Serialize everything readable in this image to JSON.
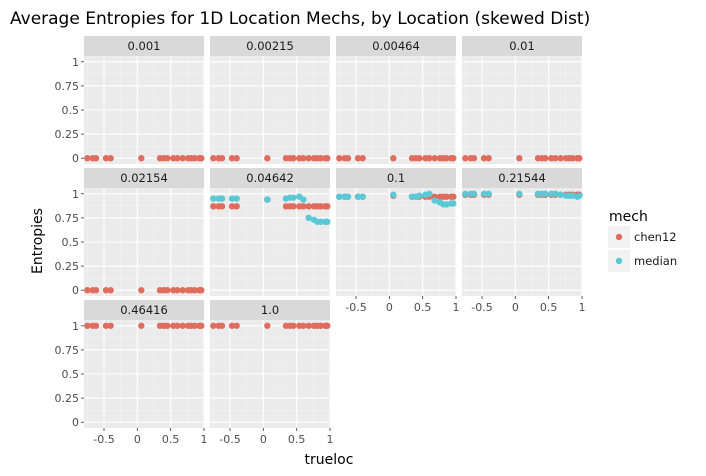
{
  "chart_data": {
    "type": "scatter",
    "title": "Average Entropies for 1D Location Mechs, by Location (skewed Dist)",
    "xlabel": "trueloc",
    "ylabel": "Entropies",
    "x_ticks": [
      "-0.5",
      "0",
      "0.5",
      "1"
    ],
    "y_ticks": [
      "0",
      "0.25",
      "0.5",
      "0.75",
      "1"
    ],
    "xlim": [
      -0.8,
      1.0
    ],
    "ylim": [
      -0.06,
      1.06
    ],
    "legend": {
      "title": "mech",
      "position": "right",
      "entries": [
        {
          "name": "chen12",
          "color": "#e06c5e"
        },
        {
          "name": "median",
          "color": "#5bc8d6"
        }
      ]
    },
    "x": [
      -0.75,
      -0.67,
      -0.62,
      -0.47,
      -0.4,
      0.06,
      0.34,
      0.4,
      0.45,
      0.54,
      0.6,
      0.68,
      0.76,
      0.81,
      0.86,
      0.93,
      0.96
    ],
    "panels": [
      {
        "label": "0.001",
        "series": [
          {
            "name": "chen12",
            "values": [
              0,
              0,
              0,
              0,
              0,
              0,
              0,
              0,
              0,
              0,
              0,
              0,
              0,
              0,
              0,
              0,
              0
            ]
          }
        ]
      },
      {
        "label": "0.00215",
        "series": [
          {
            "name": "chen12",
            "values": [
              0,
              0,
              0,
              0,
              0,
              0,
              0,
              0,
              0,
              0,
              0,
              0,
              0,
              0,
              0,
              0,
              0
            ]
          }
        ]
      },
      {
        "label": "0.00464",
        "series": [
          {
            "name": "chen12",
            "values": [
              0,
              0,
              0,
              0,
              0,
              0,
              0,
              0,
              0,
              0,
              0,
              0,
              0,
              0,
              0,
              0,
              0
            ]
          }
        ]
      },
      {
        "label": "0.01",
        "series": [
          {
            "name": "chen12",
            "values": [
              0,
              0,
              0,
              0,
              0,
              0,
              0,
              0,
              0,
              0,
              0,
              0,
              0,
              0,
              0,
              0,
              0
            ]
          }
        ]
      },
      {
        "label": "0.02154",
        "series": [
          {
            "name": "chen12",
            "values": [
              0,
              0,
              0,
              0,
              0,
              0,
              0,
              0,
              0,
              0,
              0,
              0,
              0,
              0,
              0,
              0,
              0
            ]
          }
        ]
      },
      {
        "label": "0.04642",
        "series": [
          {
            "name": "chen12",
            "values": [
              0.87,
              0.87,
              0.87,
              0.87,
              0.87,
              0.94,
              0.87,
              0.87,
              0.87,
              0.87,
              0.87,
              0.87,
              0.87,
              0.87,
              0.87,
              0.87,
              0.87
            ]
          },
          {
            "name": "median",
            "values": [
              0.95,
              0.95,
              0.95,
              0.95,
              0.95,
              0.94,
              0.95,
              0.96,
              0.96,
              0.97,
              0.94,
              0.75,
              0.73,
              0.71,
              0.71,
              0.71,
              0.71
            ]
          }
        ]
      },
      {
        "label": "0.1",
        "series": [
          {
            "name": "chen12",
            "values": [
              0.97,
              0.97,
              0.97,
              0.97,
              0.97,
              0.98,
              0.97,
              0.97,
              0.97,
              0.97,
              0.97,
              0.97,
              0.97,
              0.97,
              0.97,
              0.97,
              0.97
            ]
          },
          {
            "name": "median",
            "values": [
              0.97,
              0.97,
              0.97,
              0.97,
              0.97,
              0.99,
              0.97,
              0.97,
              0.98,
              0.99,
              1.0,
              0.93,
              0.91,
              0.89,
              0.89,
              0.9,
              0.9
            ]
          }
        ]
      },
      {
        "label": "0.21544",
        "series": [
          {
            "name": "chen12",
            "values": [
              0.99,
              0.99,
              0.99,
              0.99,
              0.99,
              0.99,
              0.99,
              0.99,
              0.99,
              0.99,
              0.99,
              0.99,
              0.99,
              0.99,
              0.99,
              0.99,
              0.99
            ]
          },
          {
            "name": "median",
            "values": [
              1.0,
              1.0,
              1.0,
              1.0,
              1.0,
              1.0,
              1.0,
              1.0,
              1.0,
              1.0,
              1.0,
              0.99,
              0.98,
              0.98,
              0.98,
              0.97,
              0.98
            ]
          }
        ]
      },
      {
        "label": "0.46416",
        "series": [
          {
            "name": "chen12",
            "values": [
              1,
              1,
              1,
              1,
              1,
              1,
              1,
              1,
              1,
              1,
              1,
              1,
              1,
              1,
              1,
              1,
              1
            ]
          }
        ]
      },
      {
        "label": "1.0",
        "series": [
          {
            "name": "chen12",
            "values": [
              1,
              1,
              1,
              1,
              1,
              1,
              1,
              1,
              1,
              1,
              1,
              1,
              1,
              1,
              1,
              1,
              1
            ]
          }
        ]
      }
    ]
  }
}
